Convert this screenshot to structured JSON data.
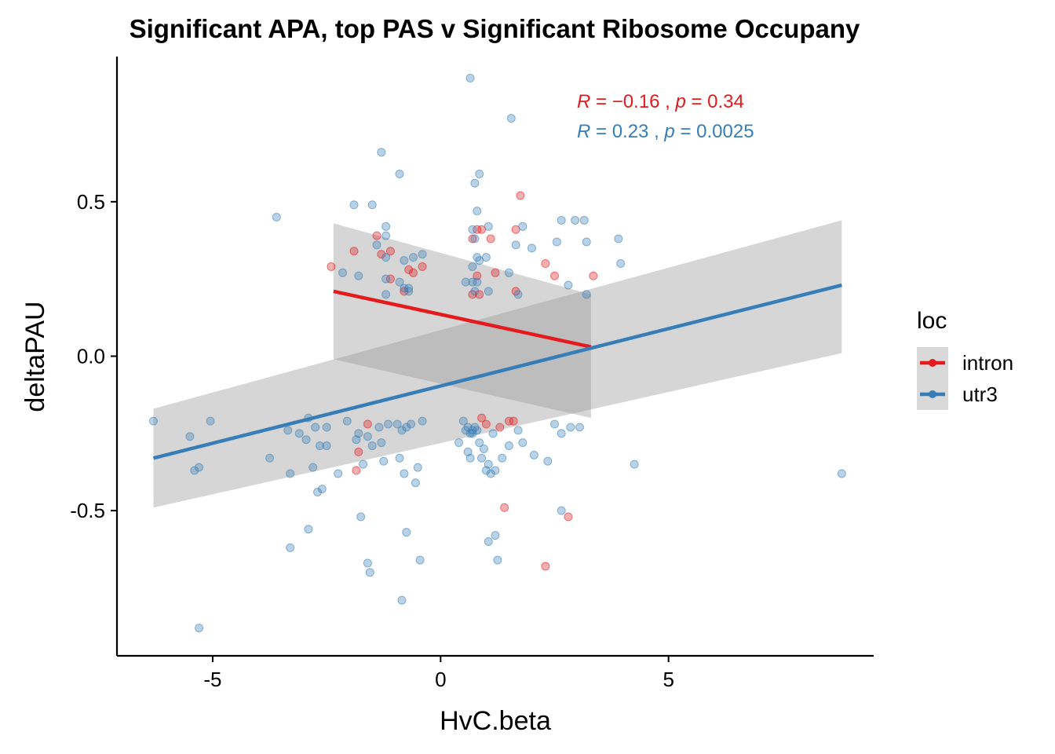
{
  "chart_data": {
    "type": "scatter",
    "title": "Significant  APA, top PAS  v Significant Ribosome Occupany",
    "xlabel": "HvC.beta",
    "ylabel": "deltaPAU",
    "xlim": [
      -7.1,
      9.5
    ],
    "ylim": [
      -0.97,
      0.97
    ],
    "x_ticks": [
      -5,
      0,
      5
    ],
    "x_tick_labels": [
      "-5",
      "0",
      "5"
    ],
    "y_ticks": [
      -0.5,
      0.0,
      0.5
    ],
    "y_tick_labels": [
      "-0.5",
      "0.0",
      "0.5"
    ],
    "grid": false,
    "legend": {
      "title": "loc",
      "position": "right",
      "entries": [
        "intron",
        "utr3"
      ]
    },
    "series": [
      {
        "name": "intron",
        "color": "#e41a1c",
        "fit": {
          "x": [
            -2.35,
            3.3
          ],
          "y": [
            0.21,
            0.03
          ],
          "ci_upper": [
            0.43,
            0.2
          ],
          "ci_lower": [
            -0.01,
            -0.2
          ]
        },
        "stat_label": {
          "r": "−0.16",
          "p": "0.34"
        },
        "points": [
          [
            -2.4,
            0.29
          ],
          [
            -1.9,
            0.34
          ],
          [
            -1.4,
            0.39
          ],
          [
            -1.3,
            0.33
          ],
          [
            -1.1,
            0.25
          ],
          [
            -1.1,
            0.34
          ],
          [
            -0.8,
            0.21
          ],
          [
            -0.7,
            0.28
          ],
          [
            -0.6,
            0.27
          ],
          [
            -0.4,
            0.29
          ],
          [
            0.7,
            0.38
          ],
          [
            0.8,
            0.41
          ],
          [
            0.9,
            0.41
          ],
          [
            1.1,
            0.38
          ],
          [
            0.8,
            0.26
          ],
          [
            1.2,
            0.27
          ],
          [
            0.7,
            0.2
          ],
          [
            0.85,
            0.2
          ],
          [
            1.65,
            0.41
          ],
          [
            1.65,
            0.21
          ],
          [
            1.75,
            0.52
          ],
          [
            2.3,
            0.3
          ],
          [
            2.5,
            0.26
          ],
          [
            3.35,
            0.26
          ],
          [
            -1.8,
            -0.31
          ],
          [
            -1.6,
            -0.22
          ],
          [
            -1.85,
            -0.37
          ],
          [
            0.9,
            -0.2
          ],
          [
            1.0,
            -0.22
          ],
          [
            1.5,
            -0.21
          ],
          [
            1.6,
            -0.21
          ],
          [
            1.3,
            -0.23
          ],
          [
            1.4,
            -0.49
          ],
          [
            2.8,
            -0.52
          ],
          [
            2.3,
            -0.68
          ]
        ]
      },
      {
        "name": "utr3",
        "color": "#377eb8",
        "fit": {
          "x": [
            -6.3,
            8.8
          ],
          "y": [
            -0.33,
            0.23
          ],
          "ci_upper": [
            -0.17,
            0.44
          ],
          "ci_lower": [
            -0.49,
            0.01
          ]
        },
        "stat_label": {
          "r": "0.23",
          "p": "0.0025"
        },
        "points": [
          [
            0.65,
            0.9
          ],
          [
            1.55,
            0.77
          ],
          [
            -1.3,
            0.66
          ],
          [
            -0.9,
            0.59
          ],
          [
            0.85,
            0.59
          ],
          [
            0.75,
            0.56
          ],
          [
            -3.6,
            0.45
          ],
          [
            -1.9,
            0.49
          ],
          [
            -1.5,
            0.49
          ],
          [
            0.8,
            0.47
          ],
          [
            0.7,
            0.41
          ],
          [
            1.05,
            0.42
          ],
          [
            1.8,
            0.42
          ],
          [
            2.65,
            0.44
          ],
          [
            2.95,
            0.44
          ],
          [
            3.15,
            0.44
          ],
          [
            -1.2,
            0.42
          ],
          [
            -1.2,
            0.39
          ],
          [
            0.75,
            0.38
          ],
          [
            1.65,
            0.36
          ],
          [
            2.0,
            0.35
          ],
          [
            2.55,
            0.37
          ],
          [
            3.2,
            0.37
          ],
          [
            3.9,
            0.38
          ],
          [
            3.95,
            0.3
          ],
          [
            -1.4,
            0.36
          ],
          [
            -1.2,
            0.32
          ],
          [
            -0.8,
            0.31
          ],
          [
            -0.6,
            0.32
          ],
          [
            -0.4,
            0.33
          ],
          [
            0.8,
            0.32
          ],
          [
            0.85,
            0.31
          ],
          [
            1.0,
            0.32
          ],
          [
            0.7,
            0.29
          ],
          [
            -2.15,
            0.27
          ],
          [
            -1.8,
            0.26
          ],
          [
            -1.2,
            0.25
          ],
          [
            -0.9,
            0.24
          ],
          [
            -0.8,
            0.22
          ],
          [
            -0.7,
            0.21
          ],
          [
            -0.7,
            0.22
          ],
          [
            -1.2,
            0.2
          ],
          [
            0.7,
            0.24
          ],
          [
            0.8,
            0.24
          ],
          [
            0.55,
            0.24
          ],
          [
            0.75,
            0.21
          ],
          [
            1.05,
            0.21
          ],
          [
            1.5,
            0.27
          ],
          [
            1.7,
            0.2
          ],
          [
            2.8,
            0.23
          ],
          [
            3.2,
            0.2
          ],
          [
            -6.3,
            -0.21
          ],
          [
            -5.5,
            -0.26
          ],
          [
            -5.4,
            -0.37
          ],
          [
            -5.3,
            -0.36
          ],
          [
            -5.05,
            -0.21
          ],
          [
            -3.75,
            -0.33
          ],
          [
            -3.35,
            -0.24
          ],
          [
            -3.3,
            -0.38
          ],
          [
            -3.1,
            -0.25
          ],
          [
            -2.95,
            -0.27
          ],
          [
            -2.9,
            -0.2
          ],
          [
            -2.75,
            -0.23
          ],
          [
            -2.65,
            -0.29
          ],
          [
            -2.5,
            -0.23
          ],
          [
            -2.5,
            -0.29
          ],
          [
            -2.25,
            -0.38
          ],
          [
            -2.05,
            -0.21
          ],
          [
            -1.85,
            -0.27
          ],
          [
            -1.8,
            -0.25
          ],
          [
            -1.7,
            -0.35
          ],
          [
            -1.6,
            -0.26
          ],
          [
            -1.5,
            -0.29
          ],
          [
            -1.35,
            -0.23
          ],
          [
            -1.3,
            -0.28
          ],
          [
            -1.25,
            -0.34
          ],
          [
            -1.15,
            -0.22
          ],
          [
            -0.95,
            -0.22
          ],
          [
            -0.85,
            -0.24
          ],
          [
            -0.75,
            -0.23
          ],
          [
            -0.65,
            -0.22
          ],
          [
            -0.5,
            -0.36
          ],
          [
            -0.4,
            -0.21
          ],
          [
            -0.9,
            -0.33
          ],
          [
            -0.8,
            -0.38
          ],
          [
            0.4,
            -0.28
          ],
          [
            0.5,
            -0.21
          ],
          [
            0.55,
            -0.24
          ],
          [
            0.6,
            -0.31
          ],
          [
            0.65,
            -0.33
          ],
          [
            0.7,
            -0.25
          ],
          [
            0.75,
            -0.23
          ],
          [
            0.8,
            -0.24
          ],
          [
            0.85,
            -0.28
          ],
          [
            0.9,
            -0.33
          ],
          [
            0.95,
            -0.3
          ],
          [
            1.0,
            -0.37
          ],
          [
            1.05,
            -0.35
          ],
          [
            1.1,
            -0.38
          ],
          [
            1.2,
            -0.37
          ],
          [
            1.35,
            -0.33
          ],
          [
            1.5,
            -0.29
          ],
          [
            1.7,
            -0.24
          ],
          [
            1.8,
            -0.28
          ],
          [
            2.05,
            -0.32
          ],
          [
            2.35,
            -0.34
          ],
          [
            2.5,
            -0.22
          ],
          [
            2.65,
            -0.25
          ],
          [
            2.85,
            -0.23
          ],
          [
            3.05,
            -0.23
          ],
          [
            4.25,
            -0.35
          ],
          [
            8.8,
            -0.38
          ],
          [
            -3.3,
            -0.62
          ],
          [
            -2.9,
            -0.56
          ],
          [
            -2.6,
            -0.43
          ],
          [
            -1.75,
            -0.52
          ],
          [
            -1.6,
            -0.67
          ],
          [
            -1.55,
            -0.7
          ],
          [
            -0.85,
            -0.79
          ],
          [
            -0.75,
            -0.57
          ],
          [
            -0.45,
            -0.66
          ],
          [
            1.05,
            -0.6
          ],
          [
            1.2,
            -0.58
          ],
          [
            1.25,
            -0.66
          ],
          [
            2.65,
            -0.5
          ],
          [
            -5.3,
            -0.88
          ],
          [
            0.6,
            -0.23
          ],
          [
            0.65,
            -0.25
          ],
          [
            0.7,
            -0.24
          ],
          [
            1.15,
            -0.25
          ],
          [
            -2.8,
            -0.36
          ],
          [
            -0.55,
            -0.41
          ],
          [
            -2.7,
            -0.44
          ]
        ]
      }
    ]
  }
}
